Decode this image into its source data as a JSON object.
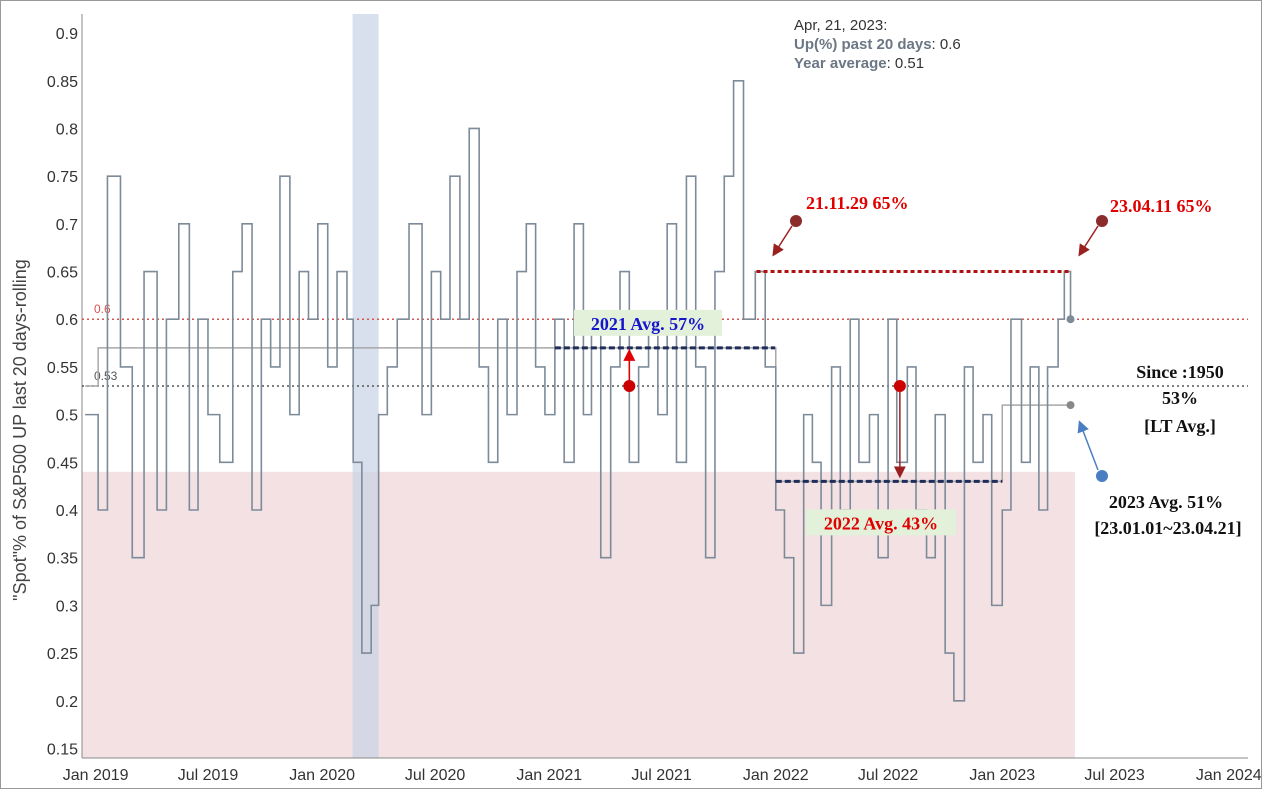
{
  "tooltip": {
    "date": "Apr, 21, 2023:",
    "line1_key": "Up(%) past 20 days",
    "line1_val": "0.6",
    "line2_key": "Year average",
    "line2_val": "0.51"
  },
  "colors": {
    "line": "#7d8b99",
    "shade_low": "#f3e1e3",
    "covid_band": "#c9d3e6",
    "red_ref": "#d9534f",
    "dark_ref": "#555555",
    "annotation_red": "#e00000",
    "annotation_blue": "#1515cc",
    "dark_red": "#9b2020",
    "navy": "#1f2d5a",
    "avg_box": "#e3f0da",
    "blue_marker": "#4a7ec2"
  },
  "chart_data": {
    "type": "line",
    "title": "",
    "xlabel": "",
    "ylabel": "\"Spot\"% of S&P500 UP last 20 days-rolling",
    "ylim": [
      0.14,
      0.92
    ],
    "y_ticks": [
      "0.15",
      "0.2",
      "0.25",
      "0.3",
      "0.35",
      "0.4",
      "0.45",
      "0.5",
      "0.55",
      "0.6",
      "0.65",
      "0.7",
      "0.75",
      "0.8",
      "0.85",
      "0.9"
    ],
    "x_ticks": [
      "Jan 2019",
      "Jul 2019",
      "Jan 2020",
      "Jul 2020",
      "Jan 2021",
      "Jul 2021",
      "Jan 2022",
      "Jul 2022",
      "Jan 2023",
      "Jul 2023",
      "Jan 2024"
    ],
    "x_tick_dates": [
      "2019-01-01",
      "2019-07-01",
      "2020-01-01",
      "2020-07-01",
      "2021-01-01",
      "2021-07-01",
      "2022-01-01",
      "2022-07-01",
      "2023-01-01",
      "2023-07-01",
      "2024-01-01"
    ],
    "xlim": [
      "2018-12-10",
      "2024-02-01"
    ],
    "series": [
      {
        "name": "Up(%) past 20 days",
        "x": [
          "2018-12-15",
          "2019-01-05",
          "2019-01-20",
          "2019-02-10",
          "2019-03-01",
          "2019-03-20",
          "2019-04-10",
          "2019-04-25",
          "2019-05-15",
          "2019-06-01",
          "2019-06-15",
          "2019-07-01",
          "2019-07-20",
          "2019-08-10",
          "2019-08-25",
          "2019-09-10",
          "2019-09-25",
          "2019-10-10",
          "2019-10-25",
          "2019-11-10",
          "2019-11-25",
          "2019-12-10",
          "2019-12-25",
          "2020-01-10",
          "2020-01-25",
          "2020-02-10",
          "2020-02-20",
          "2020-03-05",
          "2020-03-20",
          "2020-04-01",
          "2020-04-15",
          "2020-05-01",
          "2020-05-20",
          "2020-06-10",
          "2020-06-25",
          "2020-07-10",
          "2020-07-25",
          "2020-08-10",
          "2020-08-25",
          "2020-09-10",
          "2020-09-25",
          "2020-10-10",
          "2020-10-25",
          "2020-11-10",
          "2020-11-25",
          "2020-12-10",
          "2020-12-25",
          "2021-01-10",
          "2021-01-25",
          "2021-02-10",
          "2021-02-25",
          "2021-03-10",
          "2021-03-25",
          "2021-04-10",
          "2021-04-25",
          "2021-05-10",
          "2021-05-25",
          "2021-06-10",
          "2021-06-25",
          "2021-07-10",
          "2021-07-25",
          "2021-08-10",
          "2021-08-25",
          "2021-09-10",
          "2021-09-25",
          "2021-10-10",
          "2021-10-25",
          "2021-11-10",
          "2021-11-29",
          "2021-12-15",
          "2022-01-01",
          "2022-01-15",
          "2022-01-30",
          "2022-02-15",
          "2022-03-01",
          "2022-03-15",
          "2022-04-01",
          "2022-04-15",
          "2022-05-01",
          "2022-05-15",
          "2022-06-01",
          "2022-06-15",
          "2022-07-01",
          "2022-07-15",
          "2022-08-01",
          "2022-08-15",
          "2022-09-01",
          "2022-09-15",
          "2022-10-01",
          "2022-10-15",
          "2022-11-01",
          "2022-11-15",
          "2022-12-01",
          "2022-12-15",
          "2023-01-01",
          "2023-01-15",
          "2023-02-01",
          "2023-02-15",
          "2023-03-01",
          "2023-03-15",
          "2023-04-01",
          "2023-04-11",
          "2023-04-21"
        ],
        "values": [
          0.5,
          0.4,
          0.75,
          0.55,
          0.35,
          0.65,
          0.4,
          0.6,
          0.7,
          0.4,
          0.6,
          0.5,
          0.45,
          0.65,
          0.7,
          0.4,
          0.6,
          0.55,
          0.75,
          0.5,
          0.65,
          0.6,
          0.7,
          0.55,
          0.65,
          0.6,
          0.45,
          0.25,
          0.3,
          0.5,
          0.55,
          0.6,
          0.7,
          0.5,
          0.65,
          0.6,
          0.75,
          0.6,
          0.8,
          0.55,
          0.45,
          0.6,
          0.5,
          0.65,
          0.7,
          0.55,
          0.5,
          0.6,
          0.45,
          0.7,
          0.5,
          0.6,
          0.35,
          0.55,
          0.65,
          0.45,
          0.55,
          0.6,
          0.5,
          0.7,
          0.45,
          0.75,
          0.55,
          0.35,
          0.65,
          0.75,
          0.85,
          0.6,
          0.65,
          0.55,
          0.4,
          0.35,
          0.25,
          0.5,
          0.45,
          0.3,
          0.55,
          0.4,
          0.6,
          0.45,
          0.5,
          0.35,
          0.6,
          0.45,
          0.55,
          0.4,
          0.35,
          0.5,
          0.25,
          0.2,
          0.55,
          0.45,
          0.5,
          0.3,
          0.4,
          0.6,
          0.45,
          0.55,
          0.4,
          0.55,
          0.6,
          0.65,
          0.6
        ]
      },
      {
        "name": "Year average",
        "x": [
          "2018-12-15",
          "2019-01-01",
          "2019-01-05",
          "2020-01-01",
          "2020-12-31",
          "2021-01-01",
          "2021-12-31",
          "2022-01-01",
          "2022-12-31",
          "2023-01-01",
          "2023-04-21"
        ],
        "values": [
          0.53,
          0.53,
          0.57,
          0.57,
          0.57,
          0.57,
          0.57,
          0.43,
          0.43,
          0.51,
          0.51
        ]
      }
    ],
    "reference_lines": [
      {
        "y": 0.6,
        "label": "0.6"
      },
      {
        "y": 0.53,
        "label": "0.53"
      }
    ],
    "shaded_regions": [
      {
        "y_from": 0.14,
        "y_to": 0.44,
        "x_from": "2018-12-10",
        "x_to": "2023-04-28"
      },
      {
        "x_from": "2020-02-19",
        "x_to": "2020-04-01"
      }
    ],
    "annotations": [
      {
        "text": "21.11.29 65%",
        "x": "2021-11-29",
        "y": 0.65
      },
      {
        "text": "23.04.11 65%",
        "x": "2023-04-11",
        "y": 0.65
      },
      {
        "text": "2021 Avg. 57%",
        "y": 0.57
      },
      {
        "text": "2022 Avg. 43%",
        "y": 0.43
      },
      {
        "text": "Since :1950",
        "y": 0.53
      },
      {
        "text": "53%"
      },
      {
        "text": "[LT Avg.]"
      },
      {
        "text": "2023 Avg. 51%",
        "y": 0.51
      },
      {
        "text": "[23.01.01~23.04.21]"
      }
    ]
  }
}
